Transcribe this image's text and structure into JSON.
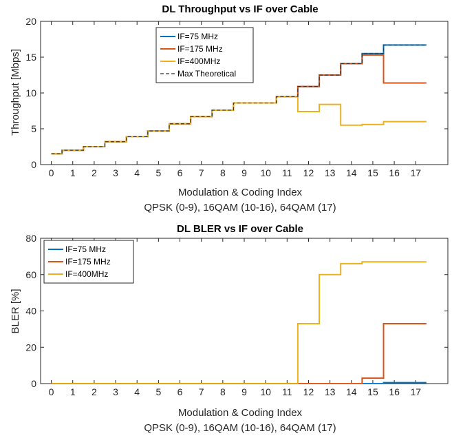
{
  "chart_data": [
    {
      "type": "line",
      "title": "DL Throughput vs IF over Cable",
      "xlabel": "Modulation & Coding Index",
      "xlabel2": "QPSK (0-9), 16QAM (10-16), 64QAM (17)",
      "ylabel": "Throughput [Mbps]",
      "xlim": [
        -0.5,
        18.5
      ],
      "ylim": [
        0,
        20
      ],
      "xticks": [
        "0",
        "1",
        "2",
        "3",
        "4",
        "5",
        "6",
        "7",
        "8",
        "9",
        "10",
        "11",
        "12",
        "13",
        "14",
        "15",
        "16",
        "17"
      ],
      "yticks": [
        "0",
        "5",
        "10",
        "15",
        "20"
      ],
      "grid": false,
      "legend": "top-center",
      "series": [
        {
          "name": "IF=75 MHz",
          "color": "#0072bd",
          "style": "solid",
          "steps": [
            1.5,
            2.0,
            2.5,
            3.2,
            3.9,
            4.7,
            5.7,
            6.7,
            7.6,
            8.6,
            8.6,
            9.5,
            10.9,
            12.5,
            14.1,
            15.5,
            16.7,
            16.7
          ]
        },
        {
          "name": "IF=175 MHz",
          "color": "#d95319",
          "style": "solid",
          "steps": [
            1.5,
            2.0,
            2.5,
            3.2,
            3.9,
            4.7,
            5.7,
            6.7,
            7.6,
            8.6,
            8.6,
            9.5,
            10.9,
            12.5,
            14.1,
            15.3,
            11.4,
            11.4
          ]
        },
        {
          "name": "IF=400MHz",
          "color": "#edb120",
          "style": "solid",
          "steps": [
            1.5,
            2.0,
            2.5,
            3.2,
            3.9,
            4.7,
            5.7,
            6.7,
            7.6,
            8.6,
            8.6,
            9.5,
            7.4,
            8.4,
            5.5,
            5.6,
            6.0,
            6.0
          ]
        },
        {
          "name": "Max Theoretical",
          "color": "#333333",
          "style": "dashed",
          "steps": [
            1.5,
            2.0,
            2.5,
            3.2,
            3.9,
            4.7,
            5.7,
            6.7,
            7.6,
            8.6,
            8.6,
            9.5,
            10.9,
            12.5,
            14.1,
            15.5,
            16.7,
            16.7
          ]
        }
      ]
    },
    {
      "type": "line",
      "title": "DL BLER vs IF over Cable",
      "xlabel": "Modulation & Coding Index",
      "xlabel2": "QPSK (0-9), 16QAM (10-16), 64QAM (17)",
      "ylabel": "BLER [%]",
      "xlim": [
        -0.5,
        18.5
      ],
      "ylim": [
        0,
        80
      ],
      "xticks": [
        "0",
        "1",
        "2",
        "3",
        "4",
        "5",
        "6",
        "7",
        "8",
        "9",
        "10",
        "11",
        "12",
        "13",
        "14",
        "15",
        "16",
        "17"
      ],
      "yticks": [
        "0",
        "20",
        "40",
        "60",
        "80"
      ],
      "grid": false,
      "legend": "top-left",
      "series": [
        {
          "name": "IF=75 MHz",
          "color": "#0072bd",
          "style": "solid",
          "steps": [
            0,
            0,
            0,
            0,
            0,
            0,
            0,
            0,
            0,
            0,
            0,
            0,
            0,
            0,
            0,
            0,
            0.5,
            0.5
          ]
        },
        {
          "name": "IF=175 MHz",
          "color": "#d95319",
          "style": "solid",
          "steps": [
            0,
            0,
            0,
            0,
            0,
            0,
            0,
            0,
            0,
            0,
            0,
            0,
            0,
            0,
            0,
            3,
            33,
            33
          ]
        },
        {
          "name": "IF=400MHz",
          "color": "#edb120",
          "style": "solid",
          "steps": [
            0,
            0,
            0,
            0,
            0,
            0,
            0,
            0,
            0,
            0,
            0,
            0,
            33,
            60,
            66,
            67,
            67,
            67
          ]
        }
      ]
    }
  ]
}
